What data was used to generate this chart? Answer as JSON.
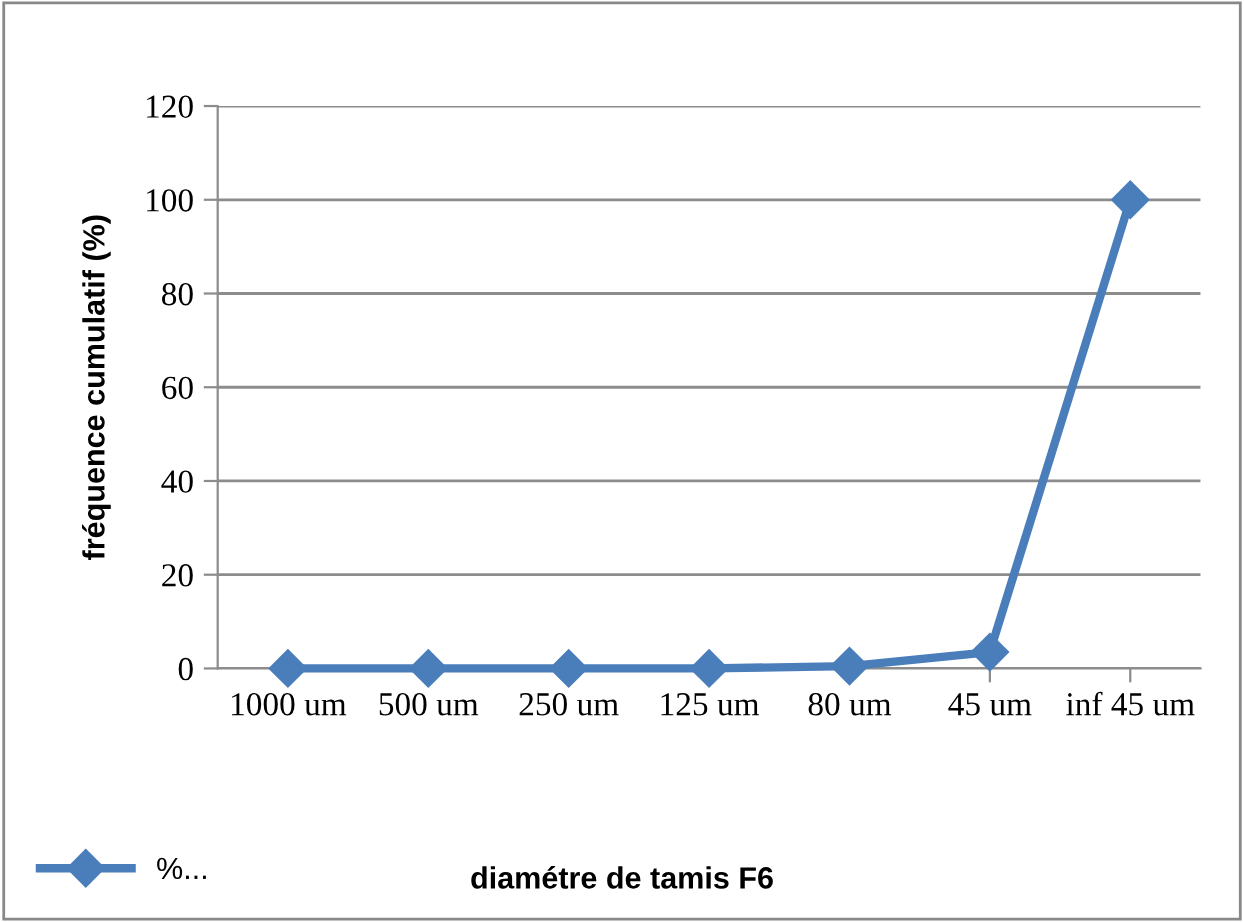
{
  "chart_data": {
    "type": "line",
    "xlabel": "diamétre de tamis F6",
    "ylabel": "fréquence cumulatif (%)",
    "categories": [
      "1000 um",
      "500 um",
      "250 um",
      "125 um",
      "80 um",
      "45 um",
      "inf 45 um"
    ],
    "series": [
      {
        "name": "%...",
        "color": "#4a7ebb",
        "values": [
          0,
          0,
          0,
          0,
          0.5,
          3.5,
          100
        ]
      }
    ],
    "ylim": [
      0,
      120
    ],
    "yticks": [
      0,
      20,
      40,
      60,
      80,
      100,
      120
    ],
    "grid": "y",
    "legend": "bottom left",
    "marker": "diamond",
    "line_style": "solid"
  }
}
